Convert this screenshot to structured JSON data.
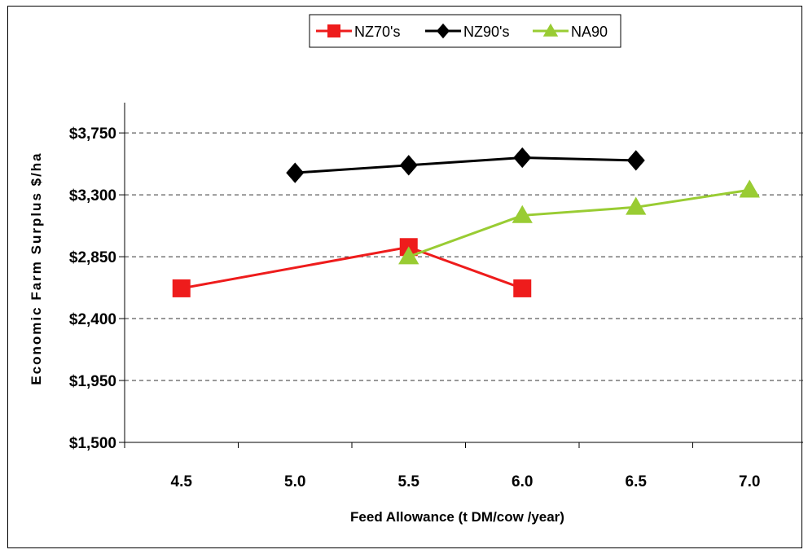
{
  "chart_data": {
    "type": "line",
    "xlabel": "Feed Allowance (t DM/cow /year)",
    "ylabel": "Economic Farm Surplus $/ha",
    "x_ticks": [
      "4.5",
      "5.0",
      "5.5",
      "6.0",
      "6.5",
      "7.0"
    ],
    "x_range": [
      4.25,
      7.25
    ],
    "y_ticks": [
      "$1,500",
      "$1,950",
      "$2,400",
      "$2,850",
      "$3,300",
      "$3,750"
    ],
    "y_tick_values": [
      1500,
      1950,
      2400,
      2850,
      3300,
      3750
    ],
    "ylim": [
      1500,
      3970
    ],
    "grid": "horizontal-dashed",
    "legend": "top-center",
    "series": [
      {
        "name": "NZ70's",
        "color": "#ee1c1c",
        "marker": "square",
        "x": [
          4.5,
          5.5,
          6.0
        ],
        "y": [
          2620,
          2920,
          2620
        ]
      },
      {
        "name": "NZ90's",
        "color": "#000000",
        "marker": "diamond",
        "x": [
          5.0,
          5.5,
          6.0,
          6.5
        ],
        "y": [
          3460,
          3515,
          3570,
          3550
        ]
      },
      {
        "name": "NA90",
        "color": "#99cc33",
        "marker": "triangle",
        "x": [
          5.5,
          6.0,
          6.5,
          7.0
        ],
        "y": [
          2850,
          3150,
          3210,
          3335
        ]
      }
    ]
  }
}
